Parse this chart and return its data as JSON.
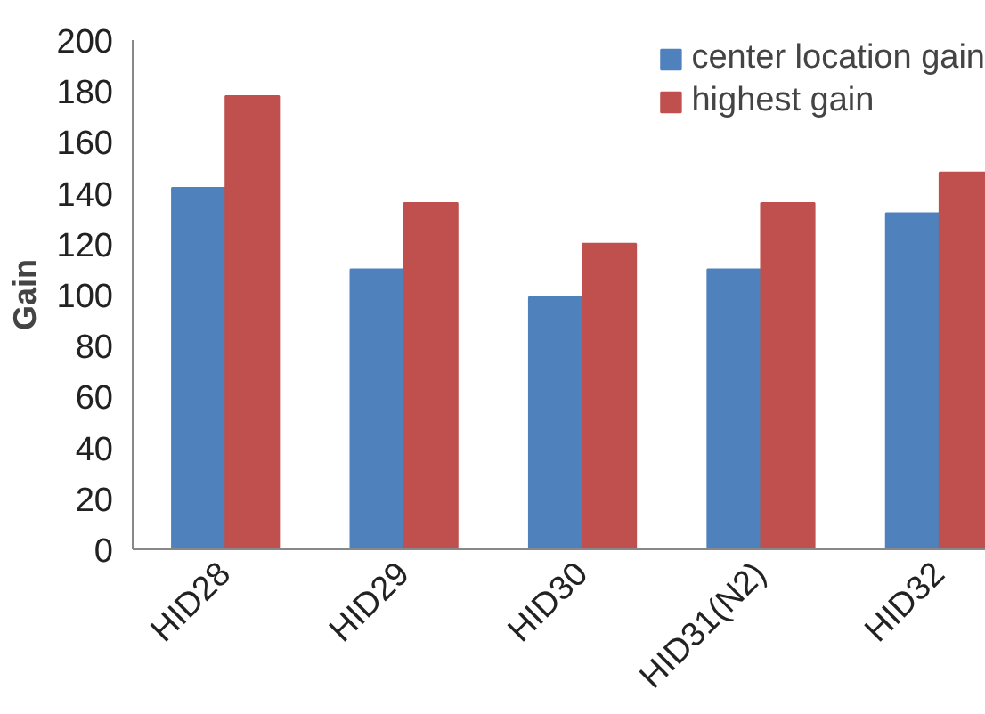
{
  "chart_data": {
    "type": "bar",
    "ylabel": "Gain",
    "categories": [
      "HID28",
      "HID29",
      "HID30",
      "HID31(N2)",
      "HID32"
    ],
    "series": [
      {
        "name": "center location gain",
        "color": "#4f81bd",
        "values": [
          142,
          110,
          99,
          110,
          132
        ]
      },
      {
        "name": "highest gain",
        "color": "#c0504d",
        "values": [
          178,
          136,
          120,
          136,
          148
        ]
      }
    ],
    "ylim": [
      0,
      200
    ],
    "yticks": [
      0,
      20,
      40,
      60,
      80,
      100,
      120,
      140,
      160,
      180,
      200
    ],
    "grid": false,
    "legend": "top right"
  }
}
